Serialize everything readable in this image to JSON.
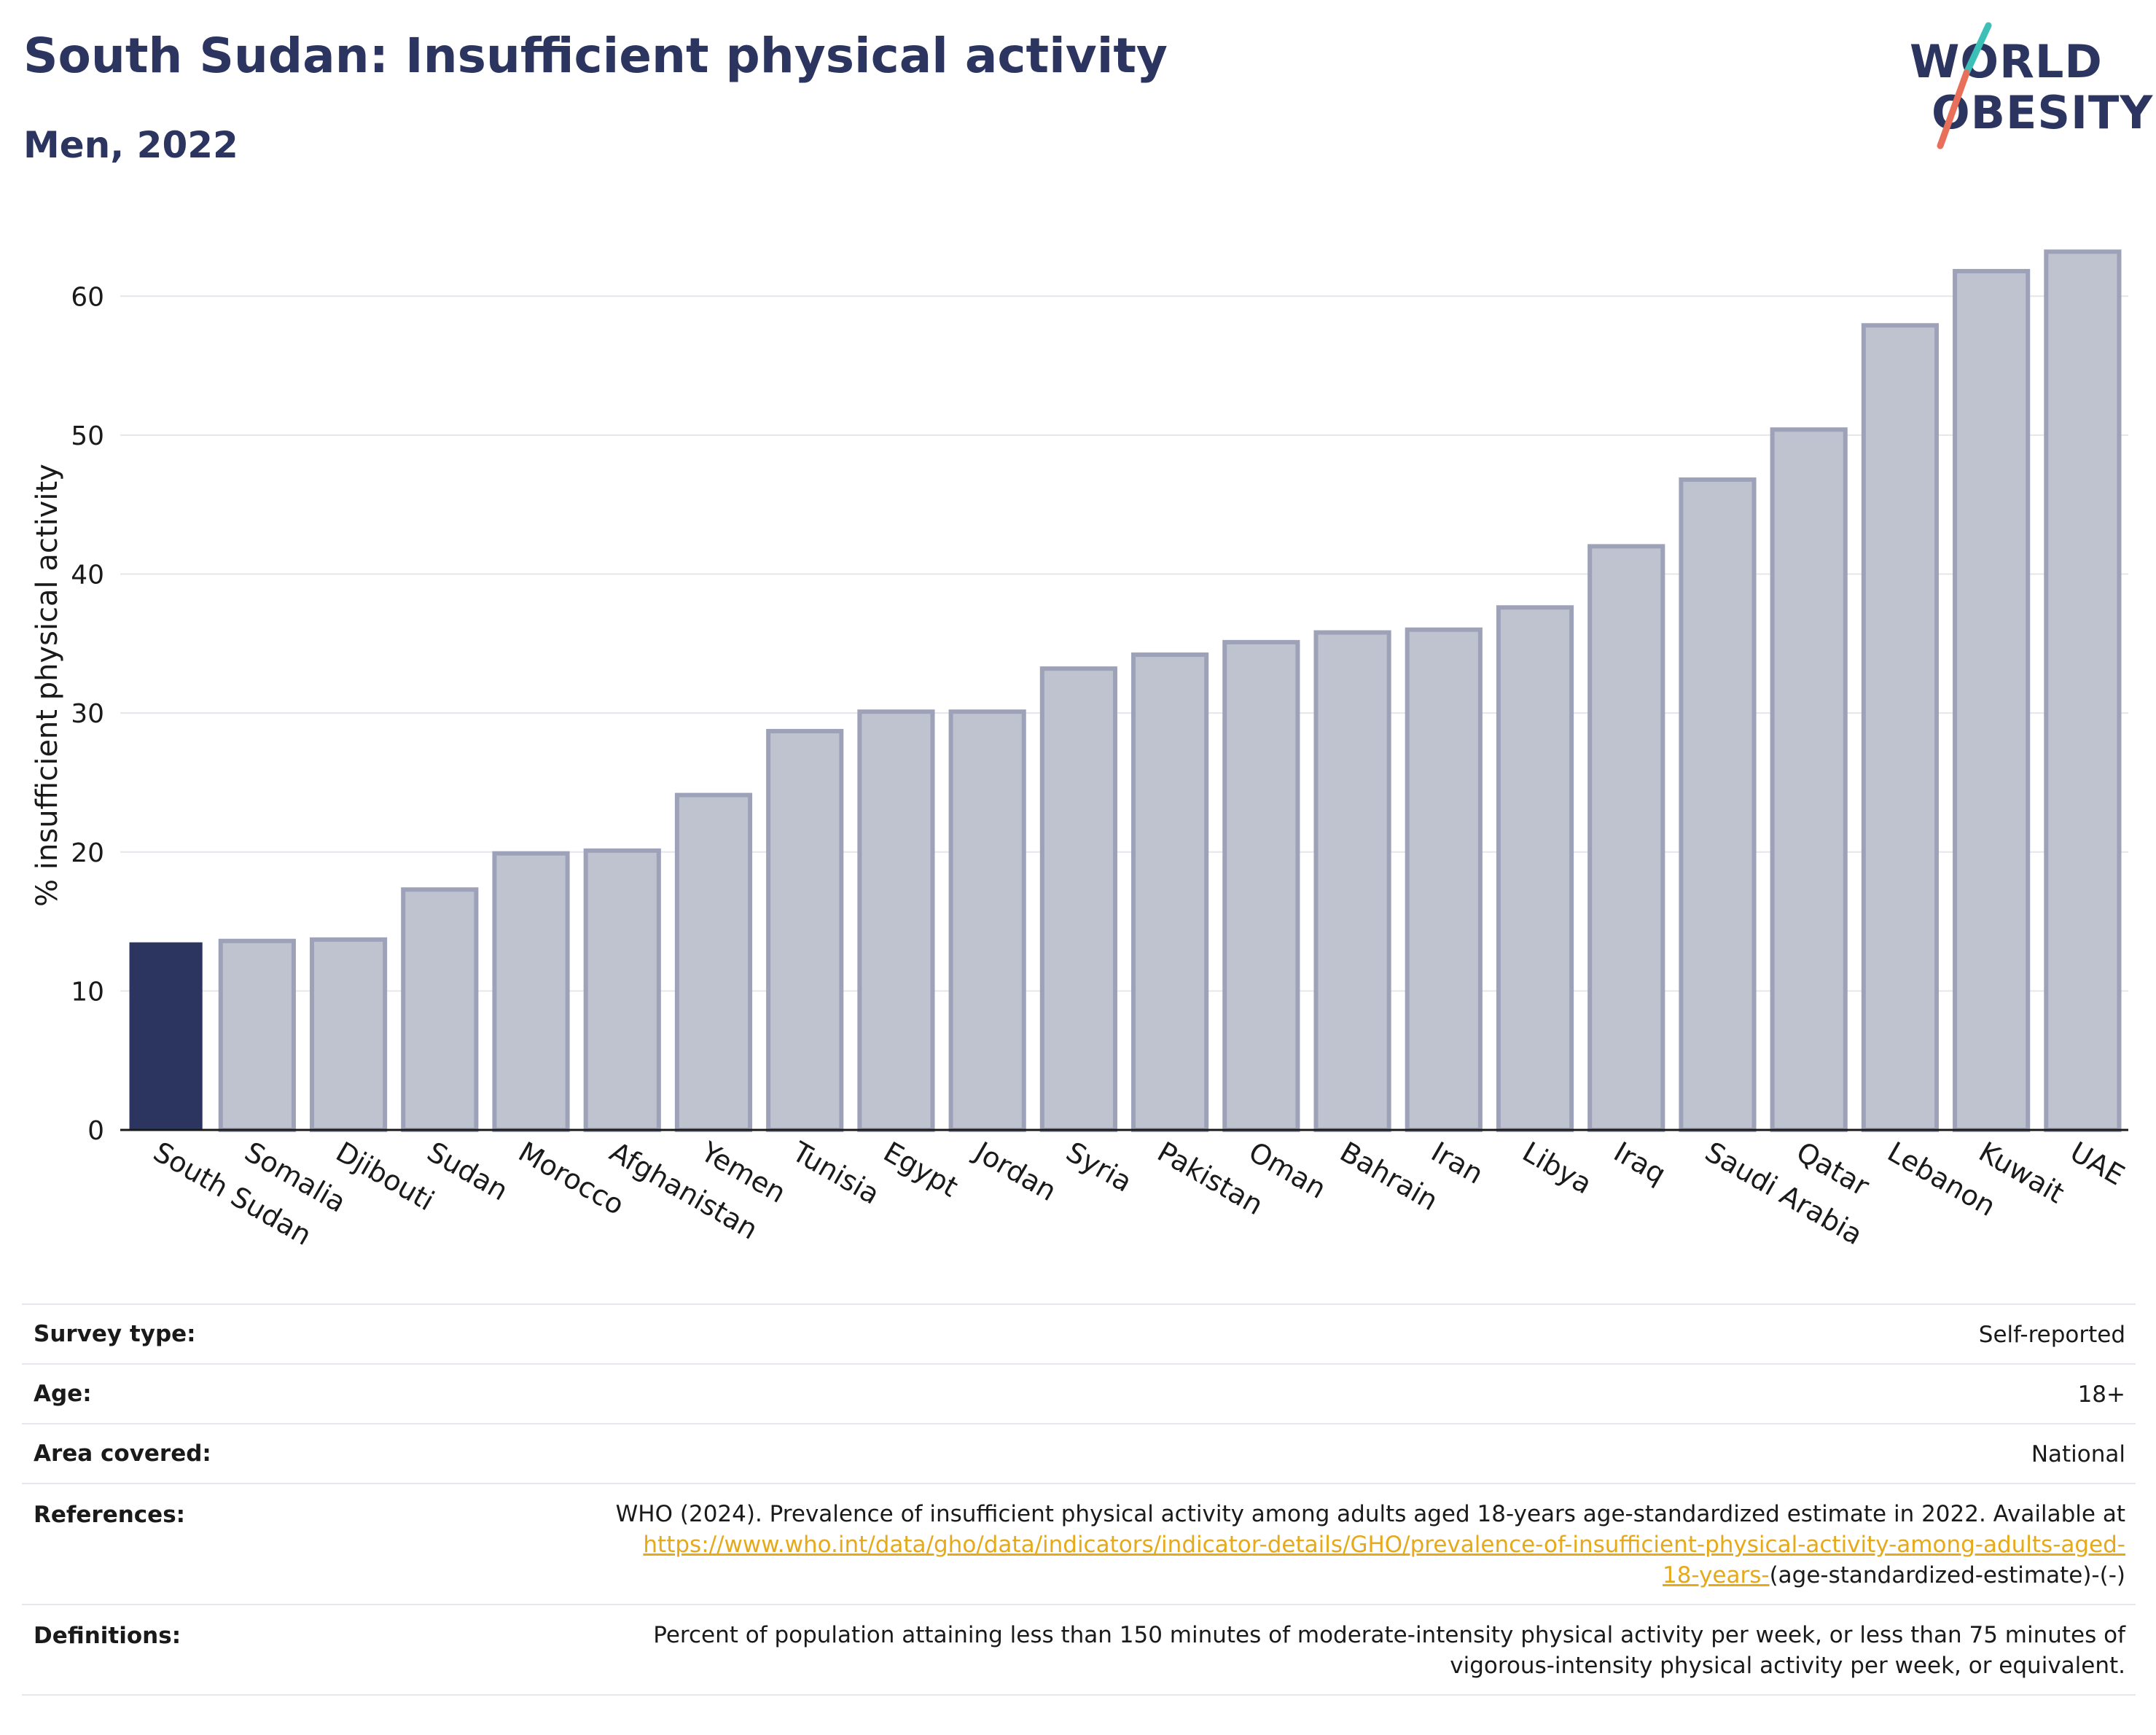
{
  "header": {
    "title": "South Sudan: Insufficient physical activity",
    "subtitle": "Men, 2022"
  },
  "logo": {
    "line1": "WORLD",
    "line2": "OBESITY",
    "accent_teal": "#3bbfb6",
    "accent_coral": "#e8705a"
  },
  "colors": {
    "highlight_bar": "#2b3560",
    "other_bar_fill": "#bfc2cf",
    "other_bar_stroke": "#9da2b8",
    "text_dark": "#2b3560",
    "link": "#e5a91a"
  },
  "chart_data": {
    "type": "bar",
    "title": "South Sudan: Insufficient physical activity",
    "subtitle": "Men, 2022",
    "xlabel": "",
    "ylabel": "% insufficient physical activity",
    "ylim": [
      0,
      64
    ],
    "yticks": [
      0,
      10,
      20,
      30,
      40,
      50,
      60
    ],
    "grid": true,
    "highlight": "South Sudan",
    "categories": [
      "South Sudan",
      "Somalia",
      "Djibouti",
      "Sudan",
      "Morocco",
      "Afghanistan",
      "Yemen",
      "Tunisia",
      "Egypt",
      "Jordan",
      "Syria",
      "Pakistan",
      "Oman",
      "Bahrain",
      "Iran",
      "Libya",
      "Iraq",
      "Saudi Arabia",
      "Qatar",
      "Lebanon",
      "Kuwait",
      "UAE"
    ],
    "values": [
      13.5,
      13.6,
      13.7,
      17.3,
      19.9,
      20.1,
      24.1,
      28.7,
      30.1,
      30.1,
      33.2,
      34.2,
      35.1,
      35.8,
      36.0,
      37.6,
      42.0,
      46.8,
      50.4,
      57.9,
      61.8,
      63.2
    ]
  },
  "info": {
    "survey_type": {
      "label": "Survey type:",
      "value": "Self-reported"
    },
    "age": {
      "label": "Age:",
      "value": "18+"
    },
    "area": {
      "label": "Area covered:",
      "value": "National"
    },
    "references": {
      "label": "References:",
      "text_line1": "WHO (2024). Prevalence of insufficient physical activity among adults aged 18-years age-standardized estimate in 2022. Available at",
      "link_line1": "https://www.who.int/data/gho/data/indicators/indicator-details/GHO/prevalence-of-insufficient-physical-activity-among-adults-aged-",
      "link_line2": "18-years-",
      "text_tail": "(age-standardized-estimate)-(-)"
    },
    "definitions": {
      "label": "Definitions:",
      "line1": "Percent of population attaining less than 150 minutes of moderate-intensity physical activity per week, or less than 75 minutes of",
      "line2": "vigorous-intensity physical activity per week, or equivalent."
    }
  }
}
